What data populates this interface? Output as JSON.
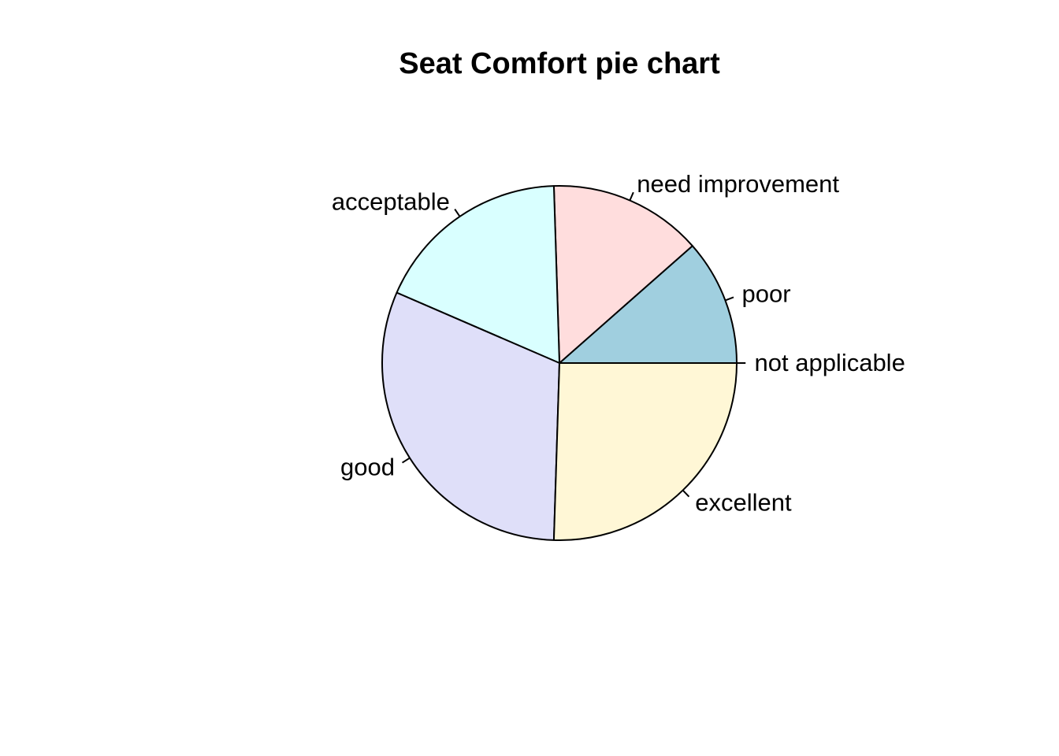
{
  "chart_data": {
    "type": "pie",
    "title": "Seat Comfort pie chart",
    "slices": [
      {
        "label": "not applicable",
        "value": 0.0,
        "color": "#FFFFFF"
      },
      {
        "label": "poor",
        "value": 11.5,
        "color": "#A0CFDF"
      },
      {
        "label": "need improvement",
        "value": 14.0,
        "color": "#FFDDDD"
      },
      {
        "label": "acceptable",
        "value": 18.0,
        "color": "#D9FFFF"
      },
      {
        "label": "good",
        "value": 31.0,
        "color": "#DFDFF9"
      },
      {
        "label": "excellent",
        "value": 25.5,
        "color": "#FFF7D6"
      }
    ],
    "start_angle_deg": 0,
    "direction": "counterclockwise",
    "legend": "none"
  }
}
